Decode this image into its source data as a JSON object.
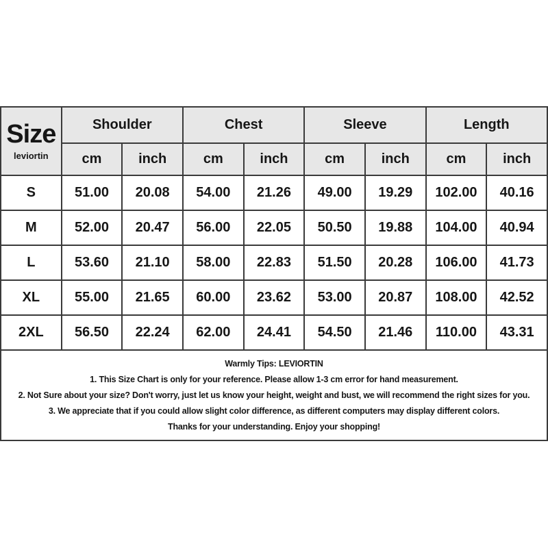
{
  "colors": {
    "page_bg": "#ffffff",
    "header_bg": "#e7e7e7",
    "row_bg": "#ffffff",
    "border": "#3a3a3a",
    "text": "#161616"
  },
  "size_chart": {
    "corner": {
      "title": "Size",
      "brand": "leviortin"
    },
    "groups": [
      {
        "label": "Shoulder"
      },
      {
        "label": "Chest"
      },
      {
        "label": "Sleeve"
      },
      {
        "label": "Length"
      }
    ],
    "units": [
      "cm",
      "inch",
      "cm",
      "inch",
      "cm",
      "inch",
      "cm",
      "inch"
    ],
    "rows": [
      {
        "size": "S",
        "values": [
          "51.00",
          "20.08",
          "54.00",
          "21.26",
          "49.00",
          "19.29",
          "102.00",
          "40.16"
        ]
      },
      {
        "size": "M",
        "values": [
          "52.00",
          "20.47",
          "56.00",
          "22.05",
          "50.50",
          "19.88",
          "104.00",
          "40.94"
        ]
      },
      {
        "size": "L",
        "values": [
          "53.60",
          "21.10",
          "58.00",
          "22.83",
          "51.50",
          "20.28",
          "106.00",
          "41.73"
        ]
      },
      {
        "size": "XL",
        "values": [
          "55.00",
          "21.65",
          "60.00",
          "23.62",
          "53.00",
          "20.87",
          "108.00",
          "42.52"
        ]
      },
      {
        "size": "2XL",
        "values": [
          "56.50",
          "22.24",
          "62.00",
          "24.41",
          "54.50",
          "21.46",
          "110.00",
          "43.31"
        ]
      }
    ]
  },
  "tips": {
    "title": "Warmly Tips: LEVIORTIN",
    "lines": [
      "1. This Size Chart is only for your reference. Please allow 1-3 cm error for hand measurement.",
      "2. Not Sure about your size? Don't worry, just let us know your height, weight and bust, we will recommend the right sizes for you.",
      "3. We appreciate that if you could allow slight color difference, as different computers may display different colors.",
      "Thanks for your understanding. Enjoy your shopping!"
    ]
  },
  "chart_data": {
    "type": "table",
    "title": "Size",
    "subtitle": "leviortin",
    "column_groups": [
      {
        "name": "Shoulder",
        "units": [
          "cm",
          "inch"
        ]
      },
      {
        "name": "Chest",
        "units": [
          "cm",
          "inch"
        ]
      },
      {
        "name": "Sleeve",
        "units": [
          "cm",
          "inch"
        ]
      },
      {
        "name": "Length",
        "units": [
          "cm",
          "inch"
        ]
      }
    ],
    "columns": [
      "Size",
      "Shoulder cm",
      "Shoulder inch",
      "Chest cm",
      "Chest inch",
      "Sleeve cm",
      "Sleeve inch",
      "Length cm",
      "Length inch"
    ],
    "rows": [
      [
        "S",
        51.0,
        20.08,
        54.0,
        21.26,
        49.0,
        19.29,
        102.0,
        40.16
      ],
      [
        "M",
        52.0,
        20.47,
        56.0,
        22.05,
        50.5,
        19.88,
        104.0,
        40.94
      ],
      [
        "L",
        53.6,
        21.1,
        58.0,
        22.83,
        51.5,
        20.28,
        106.0,
        41.73
      ],
      [
        "XL",
        55.0,
        21.65,
        60.0,
        23.62,
        53.0,
        20.87,
        108.0,
        42.52
      ],
      [
        "2XL",
        56.5,
        22.24,
        62.0,
        24.41,
        54.5,
        21.46,
        110.0,
        43.31
      ]
    ]
  }
}
